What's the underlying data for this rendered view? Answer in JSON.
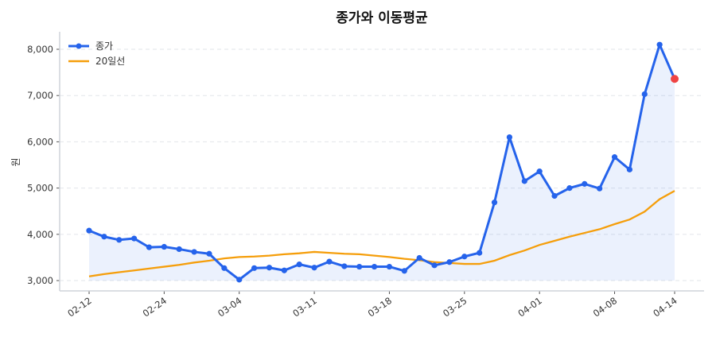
{
  "chart_data": {
    "type": "line",
    "title": "종가와 이동평균",
    "xlabel": "",
    "ylabel": "원",
    "ylim": [
      2777,
      8378
    ],
    "yticks": [
      3000,
      4000,
      5000,
      6000,
      7000,
      8000
    ],
    "ytick_labels": [
      "3,000",
      "4,000",
      "5,000",
      "6,000",
      "7,000",
      "8,000"
    ],
    "xtick_labels": [
      {
        "index": 0,
        "label": "02-12"
      },
      {
        "index": 5,
        "label": "02-24"
      },
      {
        "index": 10,
        "label": "03-04"
      },
      {
        "index": 15,
        "label": "03-11"
      },
      {
        "index": 20,
        "label": "03-18"
      },
      {
        "index": 25,
        "label": "03-25"
      },
      {
        "index": 30,
        "label": "04-01"
      },
      {
        "index": 35,
        "label": "04-08"
      },
      {
        "index": 39,
        "label": "04-14"
      }
    ],
    "grid": "horizontal dashed",
    "legend_position": "top-left",
    "series": [
      {
        "name": "종가",
        "color": "#2563eb",
        "markers": true,
        "fill": "#2563eb",
        "last_point_color": "#ef4444",
        "values": [
          4080,
          3950,
          3880,
          3910,
          3720,
          3730,
          3680,
          3620,
          3580,
          3270,
          3020,
          3270,
          3280,
          3220,
          3350,
          3280,
          3410,
          3310,
          3300,
          3300,
          3300,
          3210,
          3490,
          3330,
          3400,
          3520,
          3600,
          4690,
          6100,
          5150,
          5360,
          4830,
          5000,
          5090,
          4990,
          5670,
          5400,
          7030,
          8100,
          7360
        ]
      },
      {
        "name": "20일선",
        "color": "#f59e0b",
        "markers": false,
        "values": [
          3090,
          3140,
          3180,
          3220,
          3260,
          3300,
          3340,
          3390,
          3430,
          3480,
          3510,
          3520,
          3540,
          3570,
          3590,
          3620,
          3600,
          3580,
          3570,
          3540,
          3510,
          3470,
          3440,
          3400,
          3380,
          3360,
          3360,
          3430,
          3550,
          3650,
          3770,
          3860,
          3950,
          4030,
          4110,
          4220,
          4320,
          4490,
          4760,
          4940
        ]
      }
    ]
  }
}
